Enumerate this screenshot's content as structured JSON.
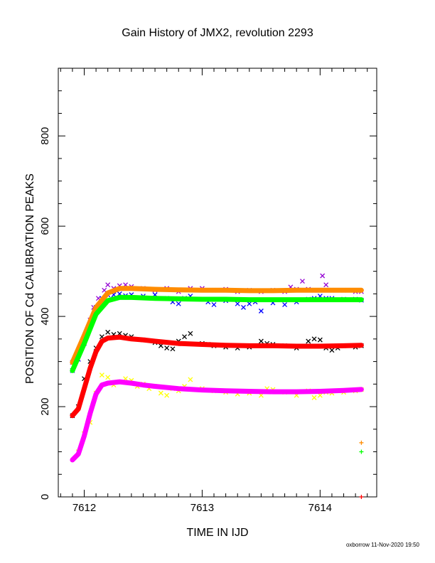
{
  "chart_data": {
    "type": "scatter",
    "title": "Gain History of JMX2, revolution 2293",
    "xlabel": "TIME IN IJD",
    "ylabel": "POSITION OF Cd CALIBRATION PEAKS",
    "xlim": [
      7611.78,
      7614.48
    ],
    "ylim": [
      0,
      950
    ],
    "x_ticks": [
      7612,
      7613,
      7614
    ],
    "y_ticks": [
      0,
      200,
      400,
      600,
      800
    ],
    "grid": false,
    "footer": "oxborrow 11-Nov-2020 19:50",
    "series": [
      {
        "color": "#9400d3",
        "marker": "x",
        "kind": "measured",
        "points": [
          [
            7611.9,
            298
          ],
          [
            7611.95,
            320
          ],
          [
            7612,
            350
          ],
          [
            7612.05,
            392
          ],
          [
            7612.08,
            420
          ],
          [
            7612.12,
            440
          ],
          [
            7612.17,
            458
          ],
          [
            7612.2,
            470
          ],
          [
            7612.25,
            462
          ],
          [
            7612.3,
            468
          ],
          [
            7612.35,
            470
          ],
          [
            7612.4,
            466
          ],
          [
            7612.5,
            462
          ],
          [
            7612.6,
            458
          ],
          [
            7612.7,
            462
          ],
          [
            7612.8,
            455
          ],
          [
            7612.9,
            462
          ],
          [
            7613,
            462
          ],
          [
            7613.1,
            458
          ],
          [
            7613.2,
            460
          ],
          [
            7613.3,
            455
          ],
          [
            7613.4,
            458
          ],
          [
            7613.5,
            455
          ],
          [
            7613.6,
            458
          ],
          [
            7613.7,
            455
          ],
          [
            7613.75,
            465
          ],
          [
            7613.8,
            460
          ],
          [
            7613.85,
            478
          ],
          [
            7613.9,
            460
          ],
          [
            7613.95,
            458
          ],
          [
            7614,
            458
          ],
          [
            7614.02,
            490
          ],
          [
            7614.05,
            470
          ],
          [
            7614.1,
            458
          ],
          [
            7614.2,
            458
          ],
          [
            7614.3,
            455
          ],
          [
            7614.35,
            455
          ]
        ]
      },
      {
        "color": "#0000ff",
        "marker": "x",
        "kind": "measured",
        "points": [
          [
            7611.9,
            280
          ],
          [
            7611.95,
            305
          ],
          [
            7612,
            340
          ],
          [
            7612.05,
            380
          ],
          [
            7612.1,
            420
          ],
          [
            7612.15,
            440
          ],
          [
            7612.2,
            448
          ],
          [
            7612.25,
            448
          ],
          [
            7612.3,
            450
          ],
          [
            7612.35,
            446
          ],
          [
            7612.4,
            448
          ],
          [
            7612.5,
            445
          ],
          [
            7612.6,
            448
          ],
          [
            7612.7,
            440
          ],
          [
            7612.75,
            432
          ],
          [
            7612.8,
            428
          ],
          [
            7612.85,
            440
          ],
          [
            7612.9,
            445
          ],
          [
            7613,
            438
          ],
          [
            7613.05,
            432
          ],
          [
            7613.1,
            426
          ],
          [
            7613.2,
            435
          ],
          [
            7613.3,
            428
          ],
          [
            7613.35,
            420
          ],
          [
            7613.4,
            428
          ],
          [
            7613.45,
            432
          ],
          [
            7613.5,
            412
          ],
          [
            7613.6,
            430
          ],
          [
            7613.7,
            426
          ],
          [
            7613.8,
            432
          ],
          [
            7613.9,
            438
          ],
          [
            7613.95,
            440
          ],
          [
            7614,
            445
          ],
          [
            7614.05,
            440
          ],
          [
            7614.1,
            440
          ],
          [
            7614.2,
            438
          ],
          [
            7614.3,
            438
          ],
          [
            7614.35,
            436
          ]
        ]
      },
      {
        "color": "#000000",
        "marker": "x",
        "kind": "measured",
        "points": [
          [
            7611.9,
            180
          ],
          [
            7611.95,
            200
          ],
          [
            7612,
            262
          ],
          [
            7612.05,
            300
          ],
          [
            7612.1,
            330
          ],
          [
            7612.15,
            355
          ],
          [
            7612.2,
            365
          ],
          [
            7612.25,
            360
          ],
          [
            7612.3,
            362
          ],
          [
            7612.35,
            358
          ],
          [
            7612.4,
            355
          ],
          [
            7612.5,
            348
          ],
          [
            7612.6,
            342
          ],
          [
            7612.65,
            335
          ],
          [
            7612.7,
            330
          ],
          [
            7612.75,
            328
          ],
          [
            7612.8,
            345
          ],
          [
            7612.85,
            355
          ],
          [
            7612.9,
            362
          ],
          [
            7613,
            340
          ],
          [
            7613.05,
            338
          ],
          [
            7613.1,
            335
          ],
          [
            7613.2,
            332
          ],
          [
            7613.3,
            330
          ],
          [
            7613.4,
            332
          ],
          [
            7613.5,
            345
          ],
          [
            7613.55,
            340
          ],
          [
            7613.6,
            338
          ],
          [
            7613.7,
            335
          ],
          [
            7613.8,
            330
          ],
          [
            7613.9,
            345
          ],
          [
            7613.95,
            350
          ],
          [
            7614,
            348
          ],
          [
            7614.05,
            330
          ],
          [
            7614.1,
            325
          ],
          [
            7614.15,
            330
          ],
          [
            7614.2,
            335
          ],
          [
            7614.3,
            332
          ],
          [
            7614.35,
            335
          ]
        ]
      },
      {
        "color": "#ffff00",
        "marker": "x",
        "kind": "measured",
        "points": [
          [
            7611.95,
            100
          ],
          [
            7612,
            140
          ],
          [
            7612.05,
            165
          ],
          [
            7612.1,
            230
          ],
          [
            7612.15,
            270
          ],
          [
            7612.2,
            265
          ],
          [
            7612.25,
            248
          ],
          [
            7612.3,
            255
          ],
          [
            7612.35,
            262
          ],
          [
            7612.4,
            258
          ],
          [
            7612.45,
            245
          ],
          [
            7612.5,
            250
          ],
          [
            7612.55,
            240
          ],
          [
            7612.6,
            245
          ],
          [
            7612.65,
            230
          ],
          [
            7612.7,
            225
          ],
          [
            7612.75,
            240
          ],
          [
            7612.8,
            235
          ],
          [
            7612.85,
            245
          ],
          [
            7612.9,
            260
          ],
          [
            7613,
            240
          ],
          [
            7613.1,
            235
          ],
          [
            7613.2,
            232
          ],
          [
            7613.3,
            228
          ],
          [
            7613.4,
            230
          ],
          [
            7613.5,
            225
          ],
          [
            7613.55,
            240
          ],
          [
            7613.6,
            238
          ],
          [
            7613.7,
            232
          ],
          [
            7613.8,
            225
          ],
          [
            7613.9,
            235
          ],
          [
            7613.95,
            220
          ],
          [
            7614,
            225
          ],
          [
            7614.05,
            232
          ],
          [
            7614.1,
            230
          ],
          [
            7614.2,
            232
          ],
          [
            7614.3,
            235
          ],
          [
            7614.35,
            238
          ]
        ]
      },
      {
        "color": "#ff8c00",
        "marker": "+",
        "kind": "fit",
        "points": [
          [
            7611.9,
            298
          ],
          [
            7612,
            358
          ],
          [
            7612.1,
            420
          ],
          [
            7612.2,
            452
          ],
          [
            7612.3,
            462
          ],
          [
            7612.4,
            462
          ],
          [
            7612.6,
            460
          ],
          [
            7612.8,
            459
          ],
          [
            7613,
            458
          ],
          [
            7613.2,
            458
          ],
          [
            7613.4,
            457
          ],
          [
            7613.6,
            457
          ],
          [
            7613.8,
            458
          ],
          [
            7614,
            458
          ],
          [
            7614.2,
            458
          ],
          [
            7614.35,
            458
          ]
        ]
      },
      {
        "color": "#00ff00",
        "marker": "+",
        "kind": "fit",
        "points": [
          [
            7611.9,
            280
          ],
          [
            7612,
            340
          ],
          [
            7612.1,
            405
          ],
          [
            7612.2,
            435
          ],
          [
            7612.3,
            442
          ],
          [
            7612.4,
            442
          ],
          [
            7612.6,
            440
          ],
          [
            7612.8,
            439
          ],
          [
            7613,
            438
          ],
          [
            7613.2,
            438
          ],
          [
            7613.4,
            437
          ],
          [
            7613.6,
            437
          ],
          [
            7613.8,
            437
          ],
          [
            7614,
            437
          ],
          [
            7614.2,
            437
          ],
          [
            7614.35,
            437
          ]
        ]
      },
      {
        "color": "#ff0000",
        "marker": "+",
        "kind": "fit",
        "points": [
          [
            7611.9,
            180
          ],
          [
            7611.95,
            195
          ],
          [
            7612,
            240
          ],
          [
            7612.05,
            285
          ],
          [
            7612.1,
            322
          ],
          [
            7612.15,
            345
          ],
          [
            7612.2,
            352
          ],
          [
            7612.3,
            354
          ],
          [
            7612.4,
            350
          ],
          [
            7612.5,
            348
          ],
          [
            7612.6,
            345
          ],
          [
            7612.8,
            340
          ],
          [
            7613,
            338
          ],
          [
            7613.2,
            336
          ],
          [
            7613.4,
            335
          ],
          [
            7613.6,
            335
          ],
          [
            7613.8,
            334
          ],
          [
            7614,
            334
          ],
          [
            7614.2,
            335
          ],
          [
            7614.35,
            336
          ]
        ]
      },
      {
        "color": "#ff00ff",
        "marker": "+",
        "kind": "fit",
        "points": [
          [
            7611.9,
            82
          ],
          [
            7611.95,
            95
          ],
          [
            7612,
            135
          ],
          [
            7612.05,
            185
          ],
          [
            7612.1,
            228
          ],
          [
            7612.15,
            248
          ],
          [
            7612.2,
            252
          ],
          [
            7612.3,
            255
          ],
          [
            7612.4,
            252
          ],
          [
            7612.5,
            248
          ],
          [
            7612.6,
            245
          ],
          [
            7612.8,
            240
          ],
          [
            7613,
            237
          ],
          [
            7613.2,
            235
          ],
          [
            7613.4,
            234
          ],
          [
            7613.6,
            233
          ],
          [
            7613.8,
            233
          ],
          [
            7614,
            234
          ],
          [
            7614.2,
            236
          ],
          [
            7614.35,
            238
          ]
        ]
      },
      {
        "color": "#ff8c00",
        "marker": "+",
        "kind": "single",
        "points": [
          [
            7614.35,
            120
          ]
        ]
      },
      {
        "color": "#00ff00",
        "marker": "+",
        "kind": "single",
        "points": [
          [
            7614.35,
            100
          ]
        ]
      },
      {
        "color": "#ff0000",
        "marker": "+",
        "kind": "single",
        "points": [
          [
            7614.35,
            0
          ]
        ]
      }
    ]
  }
}
